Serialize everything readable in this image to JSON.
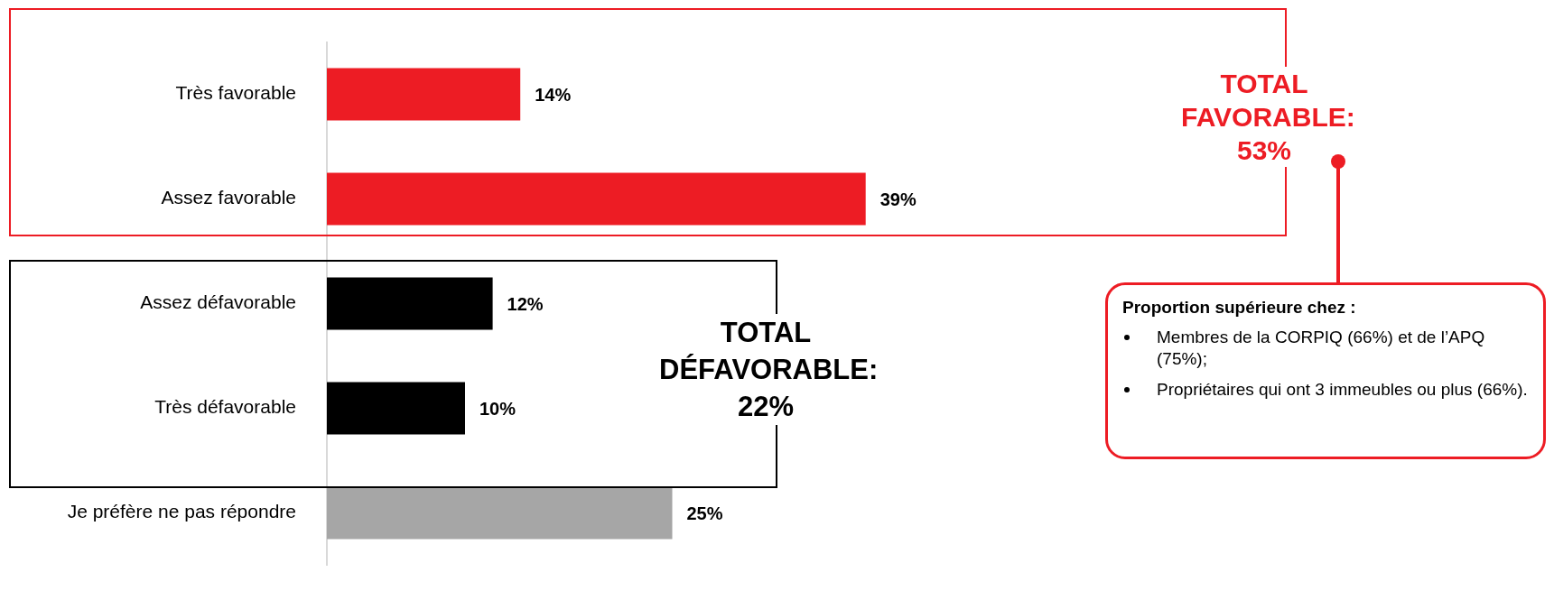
{
  "chart_data": {
    "type": "bar",
    "orientation": "horizontal",
    "categories": [
      "Très favorable",
      "Assez favorable",
      "Assez défavorable",
      "Très défavorable",
      "Je préfère ne pas répondre"
    ],
    "values": [
      14,
      39,
      12,
      10,
      25
    ],
    "colors": [
      "#ed1c24",
      "#ed1c24",
      "#000000",
      "#000000",
      "#a6a6a6"
    ],
    "value_labels": [
      "14%",
      "39%",
      "12%",
      "10%",
      "25%"
    ],
    "legend": false,
    "annotations": [
      "TOTAL FAVORABLE: 53%",
      "TOTAL DÉFAVORABLE: 22%",
      "Proportion supérieure chez :",
      "Membres de la CORPIQ (66%) et de l’APQ (75%);",
      "Propriétaires qui ont 3 immeubles ou plus (66%)."
    ]
  }
}
